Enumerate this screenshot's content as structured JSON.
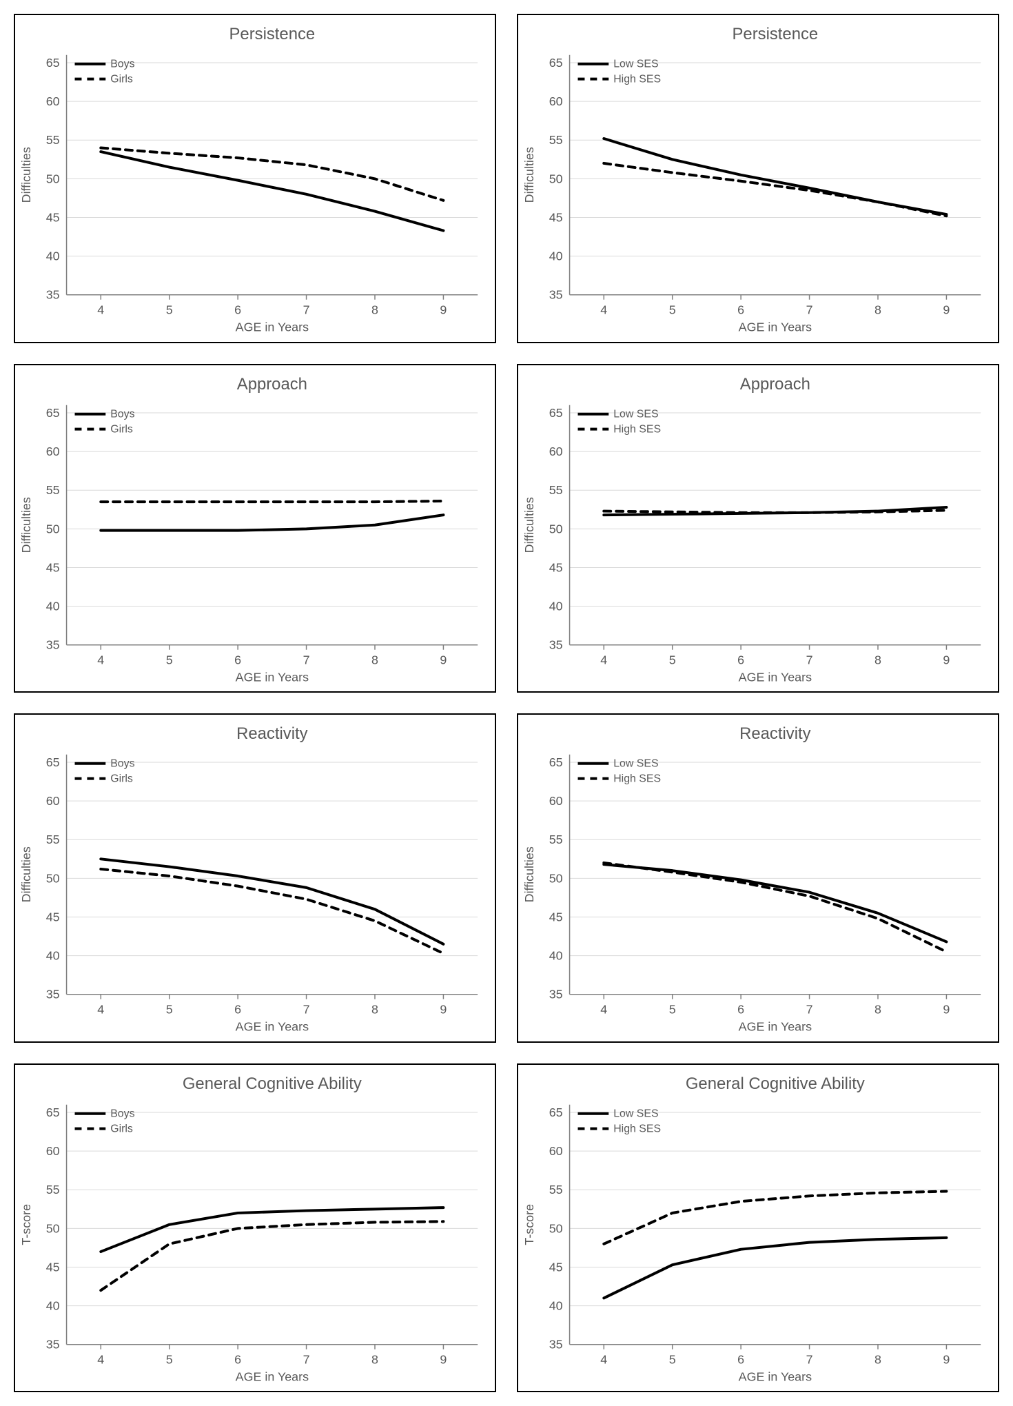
{
  "layout": {
    "cols": 2,
    "rows": 4,
    "panel_border_color": "#000000",
    "background_color": "#ffffff"
  },
  "axis": {
    "xlabel": "AGE in Years",
    "xlabel_fontsize": 18,
    "xticks": [
      4,
      5,
      6,
      7,
      8,
      9
    ],
    "xlim": [
      3.5,
      9.5
    ],
    "ylim": [
      35,
      66
    ],
    "yticks": [
      35,
      40,
      45,
      50,
      55,
      60,
      65
    ],
    "tick_fontsize": 18,
    "title_fontsize": 24,
    "ylabel_fontsize": 18,
    "grid_color": "#d9d9d9",
    "axis_color": "#808080",
    "text_color": "#595959"
  },
  "legends": {
    "gender": [
      "Boys",
      "Girls"
    ],
    "ses": [
      "Low SES",
      "High SES"
    ]
  },
  "line_style": {
    "solid_width": 4,
    "dash_width": 4,
    "dash_pattern": "10,8",
    "color": "#000000"
  },
  "charts": [
    {
      "title": "Persistence",
      "ylabel": "Difficulties",
      "legend": "gender",
      "series": [
        {
          "style": "solid",
          "y": [
            53.5,
            51.5,
            49.8,
            48.0,
            45.8,
            43.3
          ]
        },
        {
          "style": "dash",
          "y": [
            54.0,
            53.3,
            52.7,
            51.8,
            50.0,
            47.2
          ]
        }
      ]
    },
    {
      "title": "Persistence",
      "ylabel": "Difficulties",
      "legend": "ses",
      "series": [
        {
          "style": "solid",
          "y": [
            55.2,
            52.5,
            50.5,
            48.8,
            47.0,
            45.4
          ]
        },
        {
          "style": "dash",
          "y": [
            52.0,
            50.8,
            49.7,
            48.5,
            47.0,
            45.2
          ]
        }
      ]
    },
    {
      "title": "Approach",
      "ylabel": "Difficulties",
      "legend": "gender",
      "series": [
        {
          "style": "solid",
          "y": [
            49.8,
            49.8,
            49.8,
            50.0,
            50.5,
            51.8
          ]
        },
        {
          "style": "dash",
          "y": [
            53.5,
            53.5,
            53.5,
            53.5,
            53.5,
            53.6
          ]
        }
      ]
    },
    {
      "title": "Approach",
      "ylabel": "Difficulties",
      "legend": "ses",
      "series": [
        {
          "style": "solid",
          "y": [
            51.8,
            51.9,
            52.0,
            52.1,
            52.3,
            52.8
          ]
        },
        {
          "style": "dash",
          "y": [
            52.3,
            52.2,
            52.1,
            52.1,
            52.2,
            52.4
          ]
        }
      ]
    },
    {
      "title": "Reactivity",
      "ylabel": "Difficulties",
      "legend": "gender",
      "series": [
        {
          "style": "solid",
          "y": [
            52.5,
            51.5,
            50.3,
            48.8,
            46.0,
            41.5
          ]
        },
        {
          "style": "dash",
          "y": [
            51.2,
            50.3,
            49.0,
            47.3,
            44.5,
            40.3
          ]
        }
      ]
    },
    {
      "title": "Reactivity",
      "ylabel": "Difficulties",
      "legend": "ses",
      "series": [
        {
          "style": "solid",
          "y": [
            51.8,
            51.0,
            49.8,
            48.2,
            45.5,
            41.8
          ]
        },
        {
          "style": "dash",
          "y": [
            52.0,
            50.8,
            49.5,
            47.7,
            44.8,
            40.5
          ]
        }
      ]
    },
    {
      "title": "General Cognitive Ability",
      "ylabel": "T-score",
      "legend": "gender",
      "series": [
        {
          "style": "solid",
          "y": [
            47.0,
            50.5,
            52.0,
            52.3,
            52.5,
            52.7
          ]
        },
        {
          "style": "dash",
          "y": [
            42.0,
            48.0,
            50.0,
            50.5,
            50.8,
            50.9
          ]
        }
      ]
    },
    {
      "title": "General Cognitive Ability",
      "ylabel": "T-score",
      "legend": "ses",
      "series": [
        {
          "style": "solid",
          "y": [
            41.0,
            45.3,
            47.3,
            48.2,
            48.6,
            48.8
          ]
        },
        {
          "style": "dash",
          "y": [
            48.0,
            52.0,
            53.5,
            54.2,
            54.6,
            54.8
          ]
        }
      ]
    }
  ]
}
